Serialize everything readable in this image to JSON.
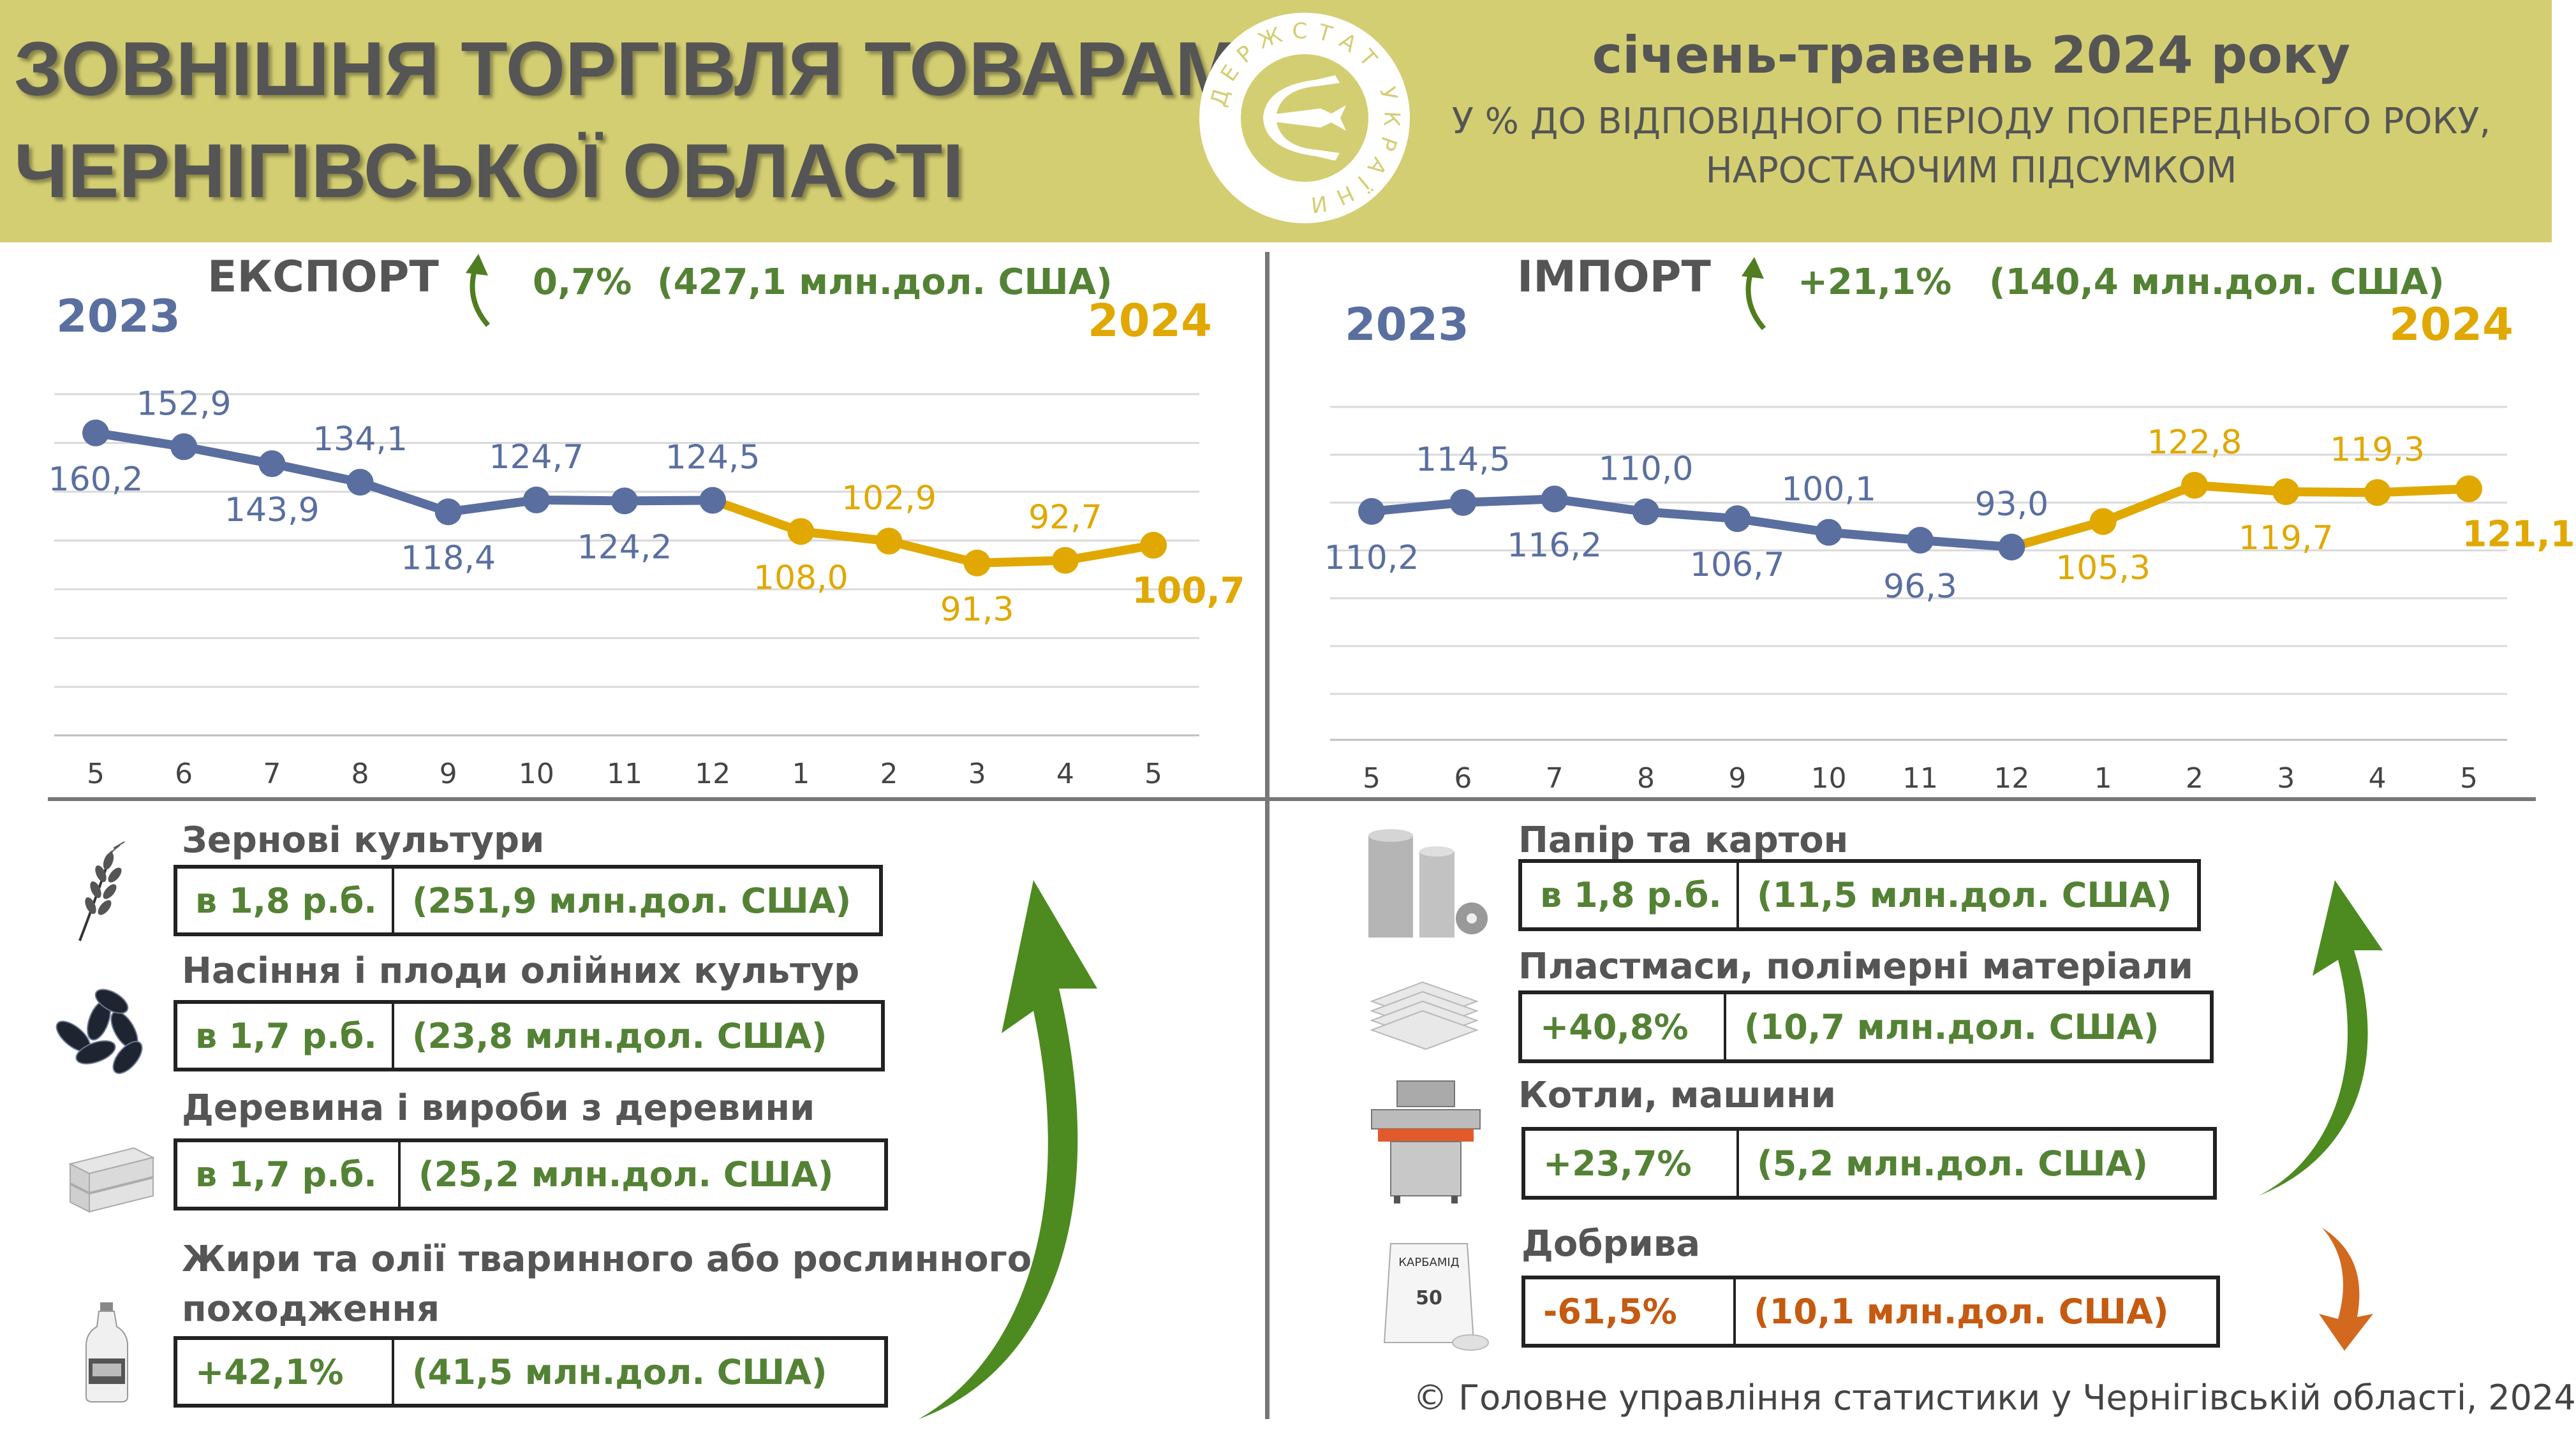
{
  "header": {
    "title_line1": "ЗОВНІШНЯ ТОРГІВЛЯ ТОВАРАМИ",
    "title_line2": "ЧЕРНІГІВСЬКОЇ ОБЛАСТІ",
    "period": "січень-травень 2024 року",
    "subtitle_line1": "У % ДО ВІДПОВІДНОГО ПЕРІОДУ ПОПЕРЕДНЬОГО РОКУ,",
    "subtitle_line2": "НАРОСТАЮЧИМ ПІДСУМКОМ",
    "logo_text": "ДЕРЖСТАТ УКРАЇНИ"
  },
  "colors": {
    "banner": "#d3ce72",
    "series_2023": "#5a6fa0",
    "series_2024": "#e0a800",
    "positive": "#548235",
    "negative": "#c55a11",
    "heading": "#555555"
  },
  "export": {
    "title": "ЕКСПОРТ",
    "change": "0,7%",
    "amount": "(427,1 млн.дол. США)",
    "year_left": "2023",
    "year_right": "2024",
    "trend_icon": "arrow-up-icon"
  },
  "import": {
    "title": "ІМПОРТ",
    "change": "+21,1%",
    "amount": "(140,4 млн.дол. США)",
    "year_left": "2023",
    "year_right": "2024",
    "trend_icon": "arrow-up-icon"
  },
  "chart_data": [
    {
      "type": "line",
      "name": "export",
      "categories": [
        "5",
        "6",
        "7",
        "8",
        "9",
        "10",
        "11",
        "12",
        "1",
        "2",
        "3",
        "4",
        "5"
      ],
      "values": [
        160.2,
        152.9,
        143.9,
        134.1,
        118.4,
        124.7,
        124.2,
        124.5,
        108.0,
        102.9,
        91.3,
        92.7,
        100.7
      ],
      "labels": [
        "160,2",
        "152,9",
        "143,9",
        "134,1",
        "118,4",
        "124,7",
        "124,2",
        "124,5",
        "108,0",
        "102,9",
        "91,3",
        "92,7",
        "100,7"
      ],
      "segments": [
        {
          "from": 0,
          "to": 7,
          "color": "#5a6fa0"
        },
        {
          "from": 7,
          "to": 12,
          "color": "#e0a800"
        }
      ],
      "ylim": [
        0,
        180
      ],
      "grid": true
    },
    {
      "type": "line",
      "name": "import",
      "categories": [
        "5",
        "6",
        "7",
        "8",
        "9",
        "10",
        "11",
        "12",
        "1",
        "2",
        "3",
        "4",
        "5"
      ],
      "values": [
        110.2,
        114.5,
        116.2,
        110.0,
        106.7,
        100.1,
        96.3,
        93.0,
        105.3,
        122.8,
        119.7,
        119.3,
        121.1
      ],
      "labels": [
        "110,2",
        "114,5",
        "116,2",
        "110,0",
        "106,7",
        "100,1",
        "96,3",
        "93,0",
        "105,3",
        "122,8",
        "119,7",
        "119,3",
        "121,1"
      ],
      "segments": [
        {
          "from": 0,
          "to": 7,
          "color": "#5a6fa0"
        },
        {
          "from": 7,
          "to": 12,
          "color": "#e0a800"
        }
      ],
      "ylim": [
        0,
        180
      ],
      "grid": true
    }
  ],
  "export_items": [
    {
      "name": "Зернові культури",
      "change": "в 1,8 р.б.",
      "amount": "(251,9 млн.дол. США)",
      "icon": "wheat-icon"
    },
    {
      "name": "Насіння і плоди олійних культур",
      "change": "в 1,7 р.б.",
      "amount": "(23,8 млн.дол. США)",
      "icon": "sunflower-seeds-icon"
    },
    {
      "name": "Деревина і вироби з деревини",
      "change": "в 1,7 р.б.",
      "amount": "(25,2 млн.дол. США)",
      "icon": "wood-planks-icon"
    },
    {
      "name_line1": "Жири та олії тваринного або рослинного",
      "name_line2": "походження",
      "change": "+42,1%",
      "amount": "(41,5 млн.дол. США)",
      "icon": "oil-bottle-icon"
    }
  ],
  "import_items": [
    {
      "name": "Папір та картон",
      "change": "в 1,8 р.б.",
      "amount": "(11,5 млн.дол. США)",
      "icon": "paper-rolls-icon"
    },
    {
      "name": "Пластмаси, полімерні матеріали",
      "change": "+40,8%",
      "amount": "(10,7 млн.дол. США)",
      "icon": "plastic-sheets-icon"
    },
    {
      "name": "Котли, машини",
      "change": "+23,7%",
      "amount": "(5,2 млн.дол. США)",
      "icon": "machine-icon"
    },
    {
      "name": "Добрива",
      "change": "-61,5%",
      "amount": "(10,1 млн.дол. США)",
      "icon": "fertilizer-bag-icon",
      "bag_text": "КАРБАМІД",
      "bag_weight": "50"
    }
  ],
  "footer": {
    "copyright": "© Головне управління статистики у Чернігівській області, 2024"
  }
}
